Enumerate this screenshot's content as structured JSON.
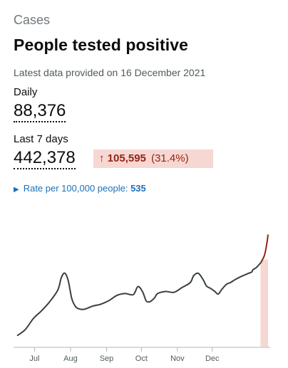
{
  "section": "Cases",
  "title": "People tested positive",
  "updated": "Latest data provided on 16 December 2021",
  "daily": {
    "label": "Daily",
    "value": "88,376"
  },
  "weekly": {
    "label": "Last 7 days",
    "value": "442,378",
    "change_arrow": "↑",
    "change_value": "105,595",
    "change_percent": "(31.4%)"
  },
  "rate": {
    "triangle": "▶",
    "label": "Rate per 100,000 people:",
    "value": "535"
  },
  "colors": {
    "line": "#383f43",
    "recent_line": "#942514",
    "recent_fill": "#f6d7d2",
    "link": "#1d70b8"
  },
  "chart_data": {
    "type": "line",
    "x_unit": "date",
    "start_date": "2021-06-16",
    "end_date": "2021-12-16",
    "categories": [
      "Jul",
      "Aug",
      "Sep",
      "Oct",
      "Nov",
      "Dec"
    ],
    "ylim": [
      0,
      90000
    ],
    "highlight_last_days": 7,
    "series": [
      {
        "values": [
          [
            0,
            7400
          ],
          [
            7,
            11500
          ],
          [
            14,
            19000
          ],
          [
            21,
            24200
          ],
          [
            28,
            30300
          ],
          [
            35,
            38200
          ],
          [
            38,
            46500
          ],
          [
            41,
            49700
          ],
          [
            44,
            44600
          ],
          [
            47,
            32700
          ],
          [
            50,
            27400
          ],
          [
            53,
            25600
          ],
          [
            58,
            25300
          ],
          [
            65,
            27400
          ],
          [
            72,
            28700
          ],
          [
            79,
            31100
          ],
          [
            86,
            34700
          ],
          [
            93,
            35900
          ],
          [
            100,
            35200
          ],
          [
            104,
            40600
          ],
          [
            108,
            37100
          ],
          [
            111,
            31100
          ],
          [
            114,
            30300
          ],
          [
            118,
            32700
          ],
          [
            121,
            35900
          ],
          [
            128,
            37300
          ],
          [
            135,
            36700
          ],
          [
            142,
            40000
          ],
          [
            149,
            43300
          ],
          [
            152,
            48000
          ],
          [
            156,
            49600
          ],
          [
            160,
            45500
          ],
          [
            163,
            41000
          ],
          [
            166,
            39600
          ],
          [
            170,
            37500
          ],
          [
            173,
            35500
          ],
          [
            176,
            38500
          ],
          [
            180,
            42000
          ],
          [
            184,
            43500
          ],
          [
            188,
            45500
          ],
          [
            193,
            47500
          ],
          [
            196,
            48500
          ],
          [
            199,
            49500
          ],
          [
            202,
            50500
          ],
          [
            203,
            52000
          ],
          [
            206,
            53500
          ],
          [
            210,
            57000
          ],
          [
            213,
            62000
          ],
          [
            215,
            70000
          ],
          [
            216,
            75800
          ]
        ]
      }
    ]
  }
}
